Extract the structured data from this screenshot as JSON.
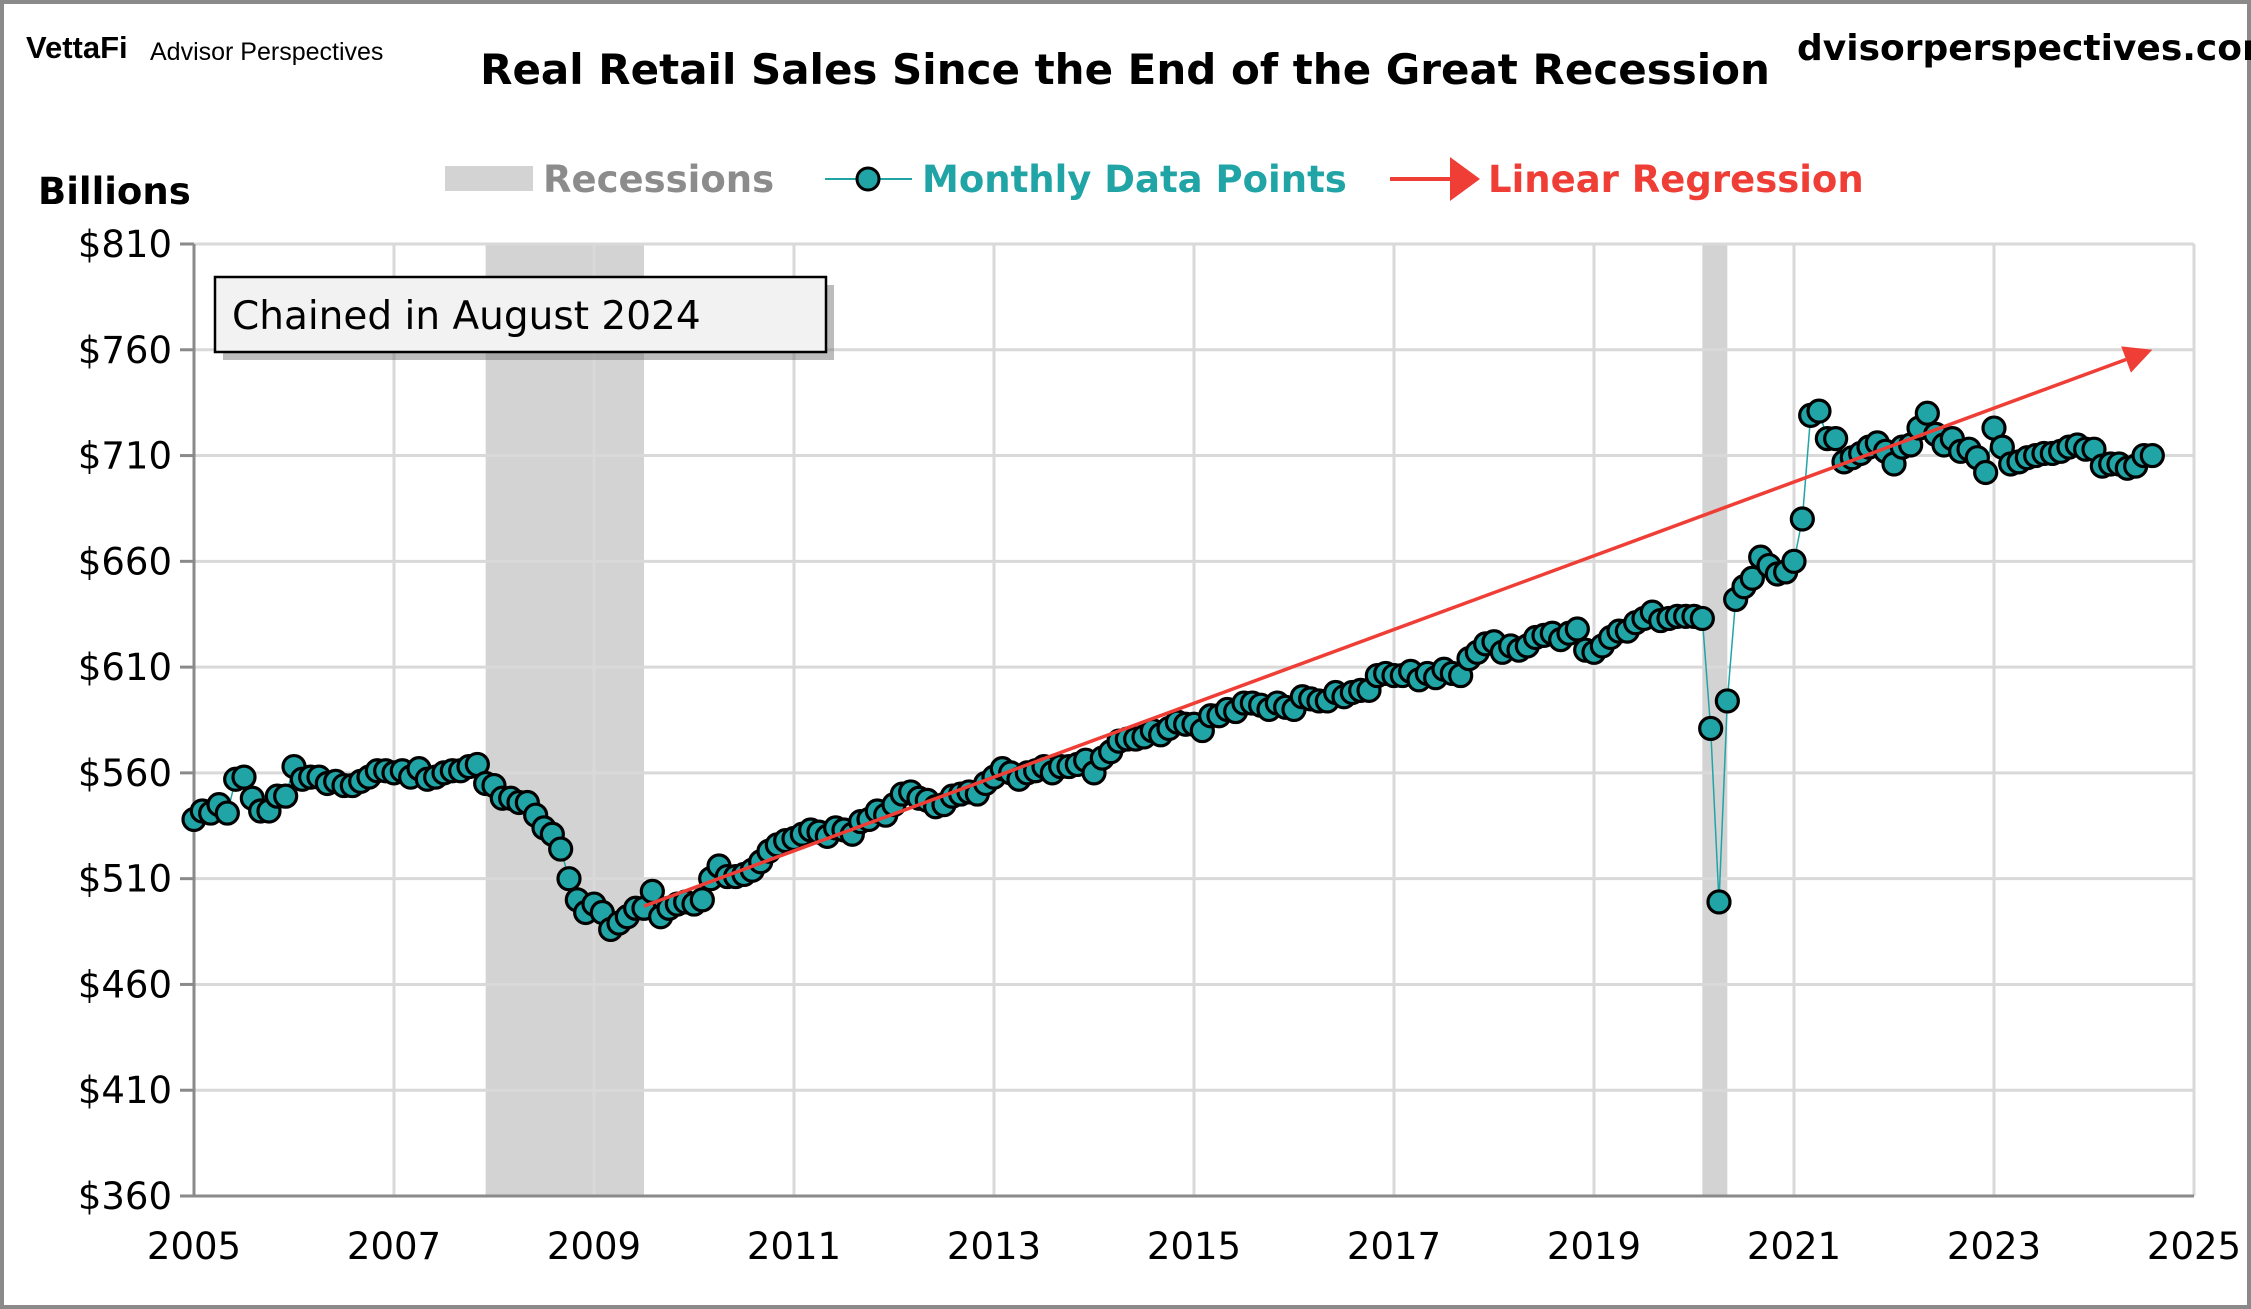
{
  "branding": {
    "logo": "VettaFi",
    "logo_sub": "Advisor Perspectives",
    "website": "advisorperspectives.com",
    "website_visible": "dvisorperspectives.com"
  },
  "annotation": "Chained in August 2024",
  "colors": {
    "marker": "#20a4a6",
    "regression": "#ef3e36",
    "recession": "#d3d3d3",
    "recession_label": "#8c8c8c",
    "grid": "#d9d9d9"
  },
  "legend": {
    "recessions": "Recessions",
    "monthly": "Monthly Data Points",
    "regression": "Linear Regression",
    "placement": "top"
  },
  "chart_data": {
    "type": "scatter",
    "title": "Real Retail Sales Since the End of the Great Recession",
    "ylabel": "Billions",
    "xlabel": "",
    "xlim": [
      2005,
      2025
    ],
    "ylim": [
      360,
      810
    ],
    "grid": true,
    "x_ticks": [
      "2005",
      "2007",
      "2009",
      "2011",
      "2013",
      "2015",
      "2017",
      "2019",
      "2021",
      "2023",
      "2025"
    ],
    "y_ticks": [
      "$360",
      "$410",
      "$460",
      "$510",
      "$560",
      "$610",
      "$660",
      "$710",
      "$760",
      "$810"
    ],
    "recessions": [
      {
        "start": "2007-12",
        "end": "2009-06"
      },
      {
        "start": "2020-02",
        "end": "2020-04"
      }
    ],
    "series": [
      {
        "name": "Monthly Data Points",
        "start": "2005-01",
        "frequency": "monthly",
        "values": [
          538,
          542,
          541,
          545,
          541,
          557,
          558,
          548,
          542,
          542,
          549,
          549,
          563,
          557,
          558,
          558,
          555,
          556,
          554,
          554,
          556,
          558,
          561,
          561,
          560,
          561,
          558,
          562,
          557,
          558,
          560,
          561,
          561,
          563,
          564,
          555,
          554,
          548,
          548,
          546,
          546,
          540,
          534,
          531,
          524,
          510,
          500,
          494,
          498,
          494,
          486,
          489,
          492,
          496,
          496,
          504,
          492,
          496,
          498,
          499,
          498,
          500,
          510,
          516,
          511,
          511,
          512,
          514,
          518,
          523,
          526,
          528,
          529,
          531,
          533,
          532,
          530,
          534,
          533,
          531,
          537,
          538,
          542,
          540,
          545,
          550,
          551,
          548,
          547,
          544,
          545,
          549,
          550,
          551,
          550,
          555,
          558,
          562,
          560,
          557,
          560,
          561,
          563,
          560,
          563,
          563,
          564,
          566,
          560,
          567,
          570,
          575,
          576,
          576,
          577,
          580,
          578,
          581,
          584,
          583,
          583,
          580,
          587,
          587,
          590,
          589,
          593,
          593,
          592,
          590,
          593,
          591,
          590,
          596,
          595,
          594,
          594,
          598,
          596,
          598,
          599,
          599,
          606,
          607,
          606,
          606,
          608,
          604,
          607,
          605,
          609,
          607,
          606,
          614,
          617,
          621,
          622,
          617,
          620,
          618,
          620,
          624,
          625,
          626,
          623,
          626,
          628,
          618,
          617,
          620,
          624,
          627,
          627,
          631,
          633,
          636,
          632,
          633,
          634,
          634,
          634,
          633,
          581,
          499,
          594,
          642,
          648,
          652,
          662,
          658,
          654,
          655,
          660,
          680,
          729,
          731,
          718,
          718,
          707,
          709,
          711,
          714,
          716,
          712,
          706,
          714,
          715,
          723,
          730,
          720,
          715,
          718,
          712,
          713,
          709,
          702,
          723,
          714,
          706,
          707,
          709,
          710,
          711,
          711,
          712,
          714,
          715,
          713,
          713,
          705,
          706,
          706,
          704,
          705,
          710,
          710
        ]
      }
    ],
    "regression": {
      "name": "Linear Regression",
      "from": {
        "x": "2009-07",
        "y": 497
      },
      "to": {
        "x": "2024-08",
        "y": 760
      }
    }
  }
}
